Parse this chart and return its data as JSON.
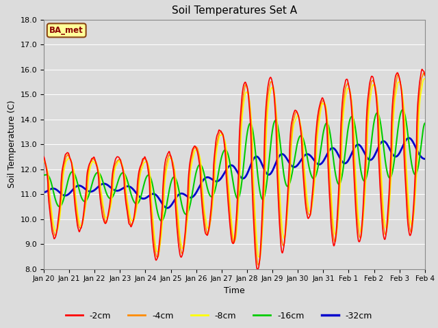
{
  "title": "Soil Temperatures Set A",
  "xlabel": "Time",
  "ylabel": "Soil Temperature (C)",
  "ylim": [
    8.0,
    18.0
  ],
  "yticks": [
    8.0,
    9.0,
    10.0,
    11.0,
    12.0,
    13.0,
    14.0,
    15.0,
    16.0,
    17.0,
    18.0
  ],
  "xtick_labels": [
    "Jan 20",
    "Jan 21",
    "Jan 22",
    "Jan 23",
    "Jan 24",
    "Jan 25",
    "Jan 26",
    "Jan 27",
    "Jan 28",
    "Jan 29",
    "Jan 30",
    "Jan 31",
    "Feb 1",
    "Feb 2",
    "Feb 3",
    "Feb 4"
  ],
  "legend_label": "BA_met",
  "legend_box_color": "#FFFF99",
  "legend_box_edge": "#8B4513",
  "line_labels": [
    "-2cm",
    "-4cm",
    "-8cm",
    "-16cm",
    "-32cm"
  ],
  "line_colors": [
    "#FF0000",
    "#FF8C00",
    "#FFFF00",
    "#00CC00",
    "#0000CD"
  ],
  "line_widths": [
    1.2,
    1.2,
    1.2,
    1.5,
    2.0
  ],
  "bg_color": "#DCDCDC",
  "grid_color": "#FFFFFF"
}
